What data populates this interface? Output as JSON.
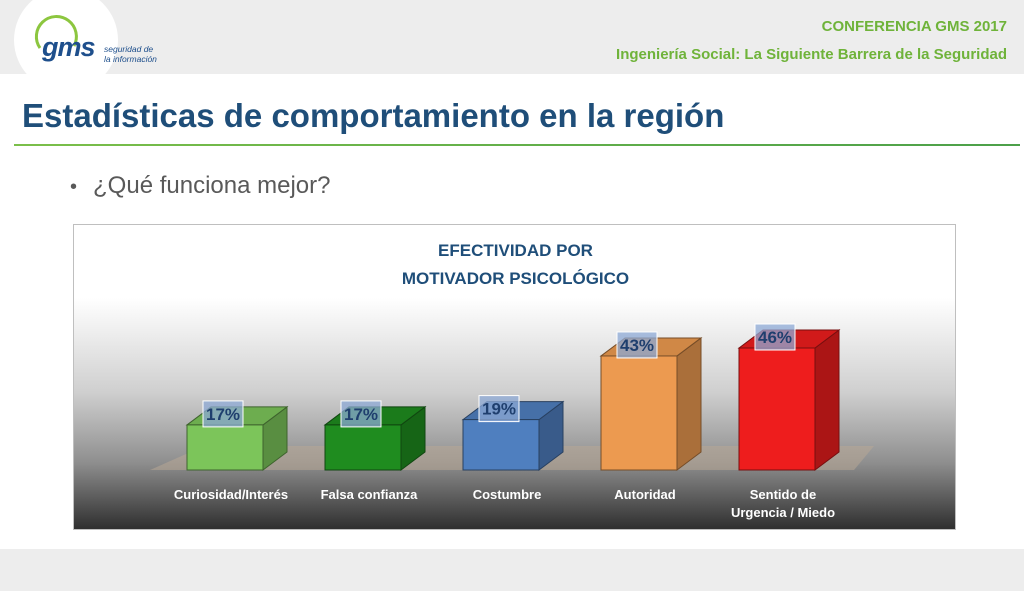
{
  "header": {
    "logo_text": "gms",
    "logo_tagline_1": "seguridad de",
    "logo_tagline_2": "la información",
    "conference": "CONFERENCIA GMS 2017",
    "subtitle": "Ingeniería Social: La Siguiente Barrera de la Seguridad"
  },
  "slide": {
    "title": "Estadísticas de comportamiento en la región",
    "bullet": "¿Qué funciona mejor?"
  },
  "colors": {
    "accent_green": "#6fb33a",
    "title_blue": "#1f4e79"
  },
  "chart_data": {
    "type": "bar",
    "title_line1": "EFECTIVIDAD POR",
    "title_line2": "MOTIVADOR PSICOLÓGICO",
    "categories": [
      "Curiosidad/Interés",
      "Falsa confianza",
      "Costumbre",
      "Autoridad",
      "Sentido de Urgencia / Miedo"
    ],
    "category_lines": [
      [
        "Curiosidad/Interés"
      ],
      [
        "Falsa confianza"
      ],
      [
        "Costumbre"
      ],
      [
        "Autoridad"
      ],
      [
        "Sentido de",
        "Urgencia / Miedo"
      ]
    ],
    "values": [
      17,
      17,
      19,
      43,
      46
    ],
    "value_labels": [
      "17%",
      "17%",
      "19%",
      "43%",
      "46%"
    ],
    "bar_colors": [
      "#7cc55a",
      "#1f8c1f",
      "#4f7fbf",
      "#ec9a50",
      "#ee1d1d"
    ],
    "style": "3d"
  }
}
